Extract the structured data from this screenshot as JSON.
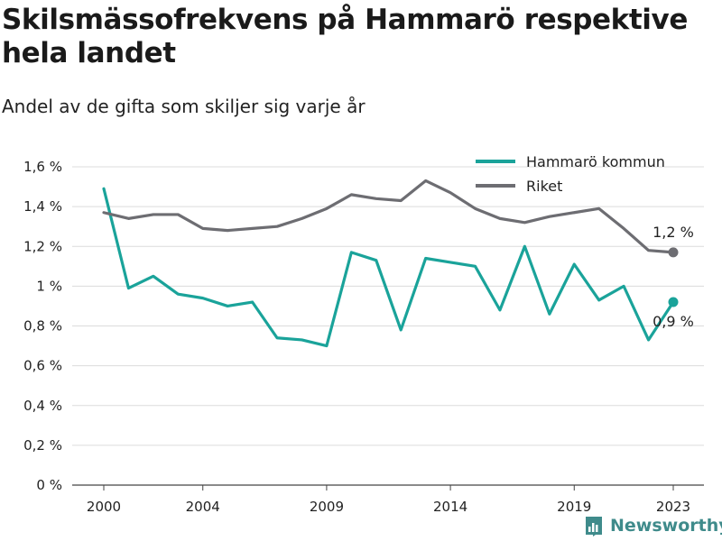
{
  "title": "Skilsmässofrekvens på Hammarö respektive hela landet",
  "subtitle": "Andel av de gifta som skiljer sig varje år",
  "brand": "Newsworthy",
  "chart_data": {
    "type": "line",
    "x": [
      2000,
      2001,
      2002,
      2003,
      2004,
      2005,
      2006,
      2007,
      2008,
      2009,
      2010,
      2011,
      2012,
      2013,
      2014,
      2015,
      2016,
      2017,
      2018,
      2019,
      2020,
      2021,
      2022,
      2023
    ],
    "x_ticks": [
      2000,
      2004,
      2009,
      2014,
      2019,
      2023
    ],
    "x_tick_labels": [
      "2000",
      "2004",
      "2009",
      "2014",
      "2019",
      "2023"
    ],
    "ylim": [
      0,
      1.6
    ],
    "y_ticks": [
      0,
      0.2,
      0.4,
      0.6,
      0.8,
      1.0,
      1.2,
      1.4,
      1.6
    ],
    "y_tick_labels": [
      "0 %",
      "0,2 %",
      "0,4 %",
      "0,6 %",
      "0,8 %",
      "1 %",
      "1,2 %",
      "1,4 %",
      "1,6 %"
    ],
    "grid": true,
    "legend_position": "top-right",
    "series": [
      {
        "name": "Hammarö kommun",
        "color": "#1aa39a",
        "values": [
          1.49,
          0.99,
          1.05,
          0.96,
          0.94,
          0.9,
          0.92,
          0.74,
          0.73,
          0.7,
          1.17,
          1.13,
          0.78,
          1.14,
          1.12,
          1.1,
          0.88,
          1.2,
          0.86,
          1.11,
          0.93,
          1.0,
          0.73,
          0.92
        ],
        "end_label": "0,9 %"
      },
      {
        "name": "Riket",
        "color": "#6d6d72",
        "values": [
          1.37,
          1.34,
          1.36,
          1.36,
          1.29,
          1.28,
          1.29,
          1.3,
          1.34,
          1.39,
          1.46,
          1.44,
          1.43,
          1.53,
          1.47,
          1.39,
          1.34,
          1.32,
          1.35,
          1.37,
          1.39,
          1.29,
          1.18,
          1.17
        ],
        "end_label": "1,2 %"
      }
    ]
  }
}
